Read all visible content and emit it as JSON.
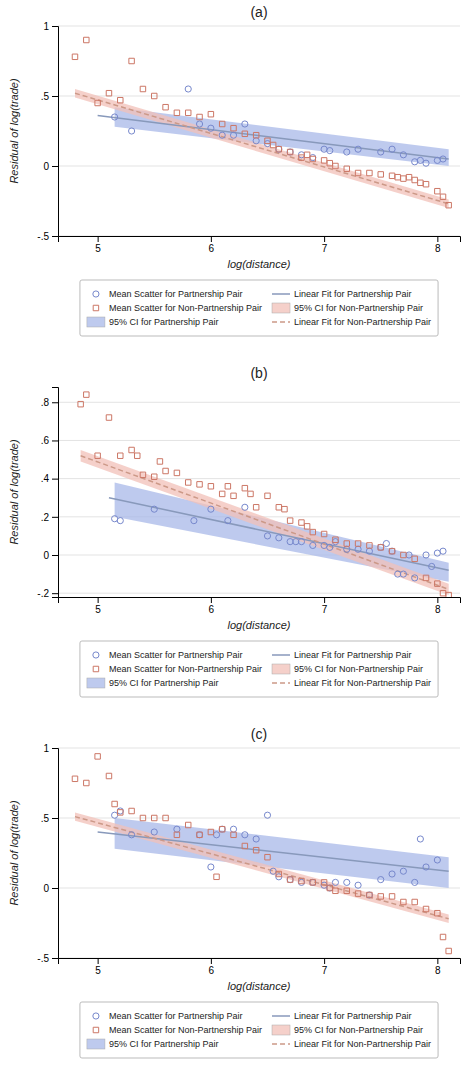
{
  "chart_data": [
    {
      "type": "scatter",
      "title": "(a)",
      "xlabel": "log(distance)",
      "ylabel": "Residual of log(trade)",
      "xlim": [
        4.65,
        8.2
      ],
      "xticks": [
        5,
        6,
        7,
        8
      ],
      "ylim": [
        -0.5,
        1.0
      ],
      "yticks": [
        {
          "value": -0.5,
          "label": "-.5"
        },
        0,
        {
          "value": 0.5,
          "label": ".5"
        },
        1
      ],
      "grid": "y",
      "legend": "bottom",
      "series": [
        {
          "name": "Mean Scatter for Partnership Pair",
          "type": "scatter",
          "marker": "circle",
          "color": "#7788cc",
          "x": [
            5.15,
            5.3,
            5.8,
            5.9,
            6.0,
            6.1,
            6.2,
            6.3,
            6.4,
            6.5,
            6.6,
            6.7,
            6.8,
            6.9,
            7.0,
            7.05,
            7.2,
            7.3,
            7.5,
            7.6,
            7.7,
            7.8,
            7.85,
            7.9,
            8.0,
            8.05
          ],
          "values": [
            0.35,
            0.25,
            0.55,
            0.3,
            0.27,
            0.22,
            0.22,
            0.3,
            0.18,
            0.16,
            0.12,
            0.1,
            0.08,
            0.06,
            0.12,
            0.11,
            0.1,
            0.12,
            0.1,
            0.12,
            0.08,
            0.03,
            0.04,
            0.02,
            0.04,
            0.05
          ]
        },
        {
          "name": "Mean Scatter for Non-Partnership Pair",
          "type": "scatter",
          "marker": "square",
          "color": "#cc7766",
          "x": [
            4.8,
            4.9,
            5.0,
            5.1,
            5.2,
            5.3,
            5.4,
            5.5,
            5.6,
            5.7,
            5.8,
            5.9,
            6.0,
            6.1,
            6.2,
            6.3,
            6.4,
            6.5,
            6.55,
            6.6,
            6.7,
            6.8,
            6.85,
            6.9,
            7.0,
            7.05,
            7.1,
            7.2,
            7.3,
            7.4,
            7.5,
            7.6,
            7.65,
            7.7,
            7.75,
            7.8,
            7.85,
            7.9,
            8.0,
            8.05,
            8.1
          ],
          "values": [
            0.78,
            0.9,
            0.45,
            0.52,
            0.47,
            0.75,
            0.55,
            0.5,
            0.42,
            0.38,
            0.38,
            0.35,
            0.37,
            0.3,
            0.27,
            0.23,
            0.22,
            0.18,
            0.15,
            0.12,
            0.1,
            0.06,
            0.08,
            0.05,
            0.04,
            0.02,
            0.0,
            -0.02,
            -0.05,
            -0.05,
            -0.06,
            -0.07,
            -0.08,
            -0.09,
            -0.08,
            -0.1,
            -0.12,
            -0.13,
            -0.18,
            -0.22,
            -0.28
          ]
        },
        {
          "name": "95% CI for Partnership Pair",
          "type": "area",
          "color": "#a8b8e8",
          "x": [
            5.15,
            8.1
          ],
          "lower": [
            0.28,
            0.0
          ],
          "upper": [
            0.42,
            0.12
          ]
        },
        {
          "name": "Linear Fit for Partnership Pair",
          "type": "line",
          "line_style": "solid",
          "color": "#8899bb",
          "x": [
            5.0,
            8.1
          ],
          "values": [
            0.36,
            0.05
          ]
        },
        {
          "name": "95% CI for Non-Partnership Pair",
          "type": "area",
          "color": "#f2c0b8",
          "x": [
            4.8,
            8.1
          ],
          "lower": [
            0.49,
            -0.3
          ],
          "upper": [
            0.55,
            -0.24
          ]
        },
        {
          "name": "Linear Fit for Non-Partnership Pair",
          "type": "line",
          "line_style": "dashed",
          "color": "#cc9988",
          "x": [
            4.8,
            8.1
          ],
          "values": [
            0.52,
            -0.27
          ]
        }
      ]
    },
    {
      "type": "scatter",
      "title": "(b)",
      "xlabel": "log(distance)",
      "ylabel": "Residual of log(trade)",
      "xlim": [
        4.65,
        8.2
      ],
      "xticks": [
        5,
        6,
        7,
        8
      ],
      "ylim": [
        -0.22,
        0.88
      ],
      "yticks": [
        {
          "value": -0.2,
          "label": "-.2"
        },
        0,
        {
          "value": 0.2,
          "label": ".2"
        },
        {
          "value": 0.4,
          "label": ".4"
        },
        {
          "value": 0.6,
          "label": ".6"
        },
        {
          "value": 0.8,
          "label": ".8"
        }
      ],
      "grid": "y",
      "legend": "bottom",
      "series": [
        {
          "name": "Mean Scatter for Partnership Pair",
          "type": "scatter",
          "marker": "circle",
          "color": "#7788cc",
          "x": [
            5.15,
            5.2,
            5.5,
            5.85,
            6.0,
            6.15,
            6.3,
            6.5,
            6.6,
            6.7,
            6.75,
            6.8,
            6.9,
            7.0,
            7.05,
            7.1,
            7.2,
            7.3,
            7.4,
            7.5,
            7.55,
            7.6,
            7.65,
            7.7,
            7.75,
            7.8,
            7.9,
            7.95,
            8.0,
            8.05
          ],
          "values": [
            0.19,
            0.18,
            0.24,
            0.18,
            0.24,
            0.18,
            0.25,
            0.1,
            0.09,
            0.07,
            0.07,
            0.07,
            0.05,
            0.05,
            0.04,
            0.07,
            0.03,
            0.03,
            0.02,
            0.04,
            0.06,
            0.02,
            -0.1,
            -0.1,
            0.0,
            -0.12,
            0.0,
            -0.06,
            0.01,
            0.02
          ]
        },
        {
          "name": "Mean Scatter for Non-Partnership Pair",
          "type": "scatter",
          "marker": "square",
          "color": "#cc7766",
          "x": [
            4.85,
            4.9,
            5.0,
            5.1,
            5.2,
            5.3,
            5.35,
            5.4,
            5.5,
            5.55,
            5.6,
            5.7,
            5.8,
            5.9,
            6.0,
            6.1,
            6.15,
            6.2,
            6.3,
            6.35,
            6.4,
            6.5,
            6.6,
            6.65,
            6.7,
            6.8,
            6.85,
            6.9,
            7.0,
            7.1,
            7.2,
            7.3,
            7.4,
            7.5,
            7.6,
            7.7,
            7.8,
            7.9,
            8.0,
            8.05,
            8.1
          ],
          "values": [
            0.79,
            0.84,
            0.52,
            0.72,
            0.52,
            0.55,
            0.52,
            0.42,
            0.41,
            0.49,
            0.44,
            0.43,
            0.38,
            0.37,
            0.36,
            0.32,
            0.36,
            0.31,
            0.35,
            0.32,
            0.25,
            0.31,
            0.25,
            0.24,
            0.18,
            0.17,
            0.15,
            0.12,
            0.11,
            0.08,
            0.06,
            0.06,
            0.05,
            0.04,
            0.02,
            0.0,
            -0.02,
            -0.12,
            -0.15,
            -0.2,
            -0.21
          ]
        },
        {
          "name": "95% CI for Partnership Pair",
          "type": "area",
          "color": "#a8b8e8",
          "x": [
            5.15,
            8.1
          ],
          "lower": [
            0.2,
            -0.14
          ],
          "upper": [
            0.38,
            -0.04
          ]
        },
        {
          "name": "Linear Fit for Partnership Pair",
          "type": "line",
          "line_style": "solid",
          "color": "#8899bb",
          "x": [
            5.1,
            8.1
          ],
          "values": [
            0.3,
            -0.08
          ]
        },
        {
          "name": "95% CI for Non-Partnership Pair",
          "type": "area",
          "color": "#f2c0b8",
          "x": [
            4.85,
            8.1
          ],
          "lower": [
            0.49,
            -0.21
          ],
          "upper": [
            0.55,
            -0.15
          ]
        },
        {
          "name": "Linear Fit for Non-Partnership Pair",
          "type": "line",
          "line_style": "dashed",
          "color": "#cc9988",
          "x": [
            4.85,
            8.1
          ],
          "values": [
            0.52,
            -0.18
          ]
        }
      ]
    },
    {
      "type": "scatter",
      "title": "(c)",
      "xlabel": "log(distance)",
      "ylabel": "Residual of log(trade)",
      "xlim": [
        4.65,
        8.2
      ],
      "xticks": [
        5,
        6,
        7,
        8
      ],
      "ylim": [
        -0.5,
        1.0
      ],
      "yticks": [
        {
          "value": -0.5,
          "label": "-.5"
        },
        0,
        {
          "value": 0.5,
          "label": ".5"
        },
        1
      ],
      "grid": "y",
      "legend": "bottom",
      "series": [
        {
          "name": "Mean Scatter for Partnership Pair",
          "type": "scatter",
          "marker": "circle",
          "color": "#7788cc",
          "x": [
            5.15,
            5.2,
            5.3,
            5.5,
            5.7,
            5.9,
            6.0,
            6.05,
            6.1,
            6.2,
            6.3,
            6.4,
            6.5,
            6.55,
            6.6,
            6.7,
            6.8,
            6.9,
            7.0,
            7.05,
            7.1,
            7.2,
            7.3,
            7.4,
            7.5,
            7.6,
            7.7,
            7.8,
            7.85,
            7.9,
            8.0
          ],
          "values": [
            0.52,
            0.55,
            0.38,
            0.4,
            0.42,
            0.38,
            0.15,
            0.38,
            0.42,
            0.42,
            0.38,
            0.35,
            0.52,
            0.12,
            0.08,
            0.06,
            0.04,
            0.04,
            0.02,
            0.0,
            0.04,
            0.04,
            0.02,
            -0.05,
            0.06,
            0.1,
            0.12,
            0.04,
            0.35,
            0.15,
            0.2
          ]
        },
        {
          "name": "Mean Scatter for Non-Partnership Pair",
          "type": "scatter",
          "marker": "square",
          "color": "#cc7766",
          "x": [
            4.8,
            4.9,
            5.0,
            5.1,
            5.15,
            5.2,
            5.3,
            5.4,
            5.5,
            5.6,
            5.7,
            5.8,
            5.9,
            6.0,
            6.05,
            6.1,
            6.2,
            6.3,
            6.4,
            6.5,
            6.6,
            6.7,
            6.8,
            6.9,
            7.0,
            7.05,
            7.1,
            7.2,
            7.3,
            7.4,
            7.5,
            7.6,
            7.7,
            7.8,
            7.9,
            8.0,
            8.05,
            8.1
          ],
          "values": [
            0.78,
            0.75,
            0.94,
            0.8,
            0.6,
            0.54,
            0.55,
            0.5,
            0.5,
            0.5,
            0.38,
            0.45,
            0.38,
            0.4,
            0.08,
            0.42,
            0.38,
            0.3,
            0.27,
            0.22,
            0.1,
            0.06,
            0.05,
            0.04,
            0.04,
            0.0,
            -0.02,
            -0.02,
            -0.04,
            -0.05,
            -0.06,
            -0.06,
            -0.1,
            -0.1,
            -0.15,
            -0.18,
            -0.35,
            -0.45
          ]
        },
        {
          "name": "95% CI for Partnership Pair",
          "type": "area",
          "color": "#a8b8e8",
          "x": [
            5.15,
            8.1
          ],
          "lower": [
            0.28,
            0.0
          ],
          "upper": [
            0.5,
            0.22
          ]
        },
        {
          "name": "Linear Fit for Partnership Pair",
          "type": "line",
          "line_style": "solid",
          "color": "#8899bb",
          "x": [
            5.0,
            8.1
          ],
          "values": [
            0.4,
            0.12
          ]
        },
        {
          "name": "95% CI for Non-Partnership Pair",
          "type": "area",
          "color": "#f2c0b8",
          "x": [
            4.8,
            8.1
          ],
          "lower": [
            0.48,
            -0.25
          ],
          "upper": [
            0.54,
            -0.19
          ]
        },
        {
          "name": "Linear Fit for Non-Partnership Pair",
          "type": "line",
          "line_style": "dashed",
          "color": "#cc9988",
          "x": [
            4.8,
            8.1
          ],
          "values": [
            0.51,
            -0.22
          ]
        }
      ]
    }
  ]
}
